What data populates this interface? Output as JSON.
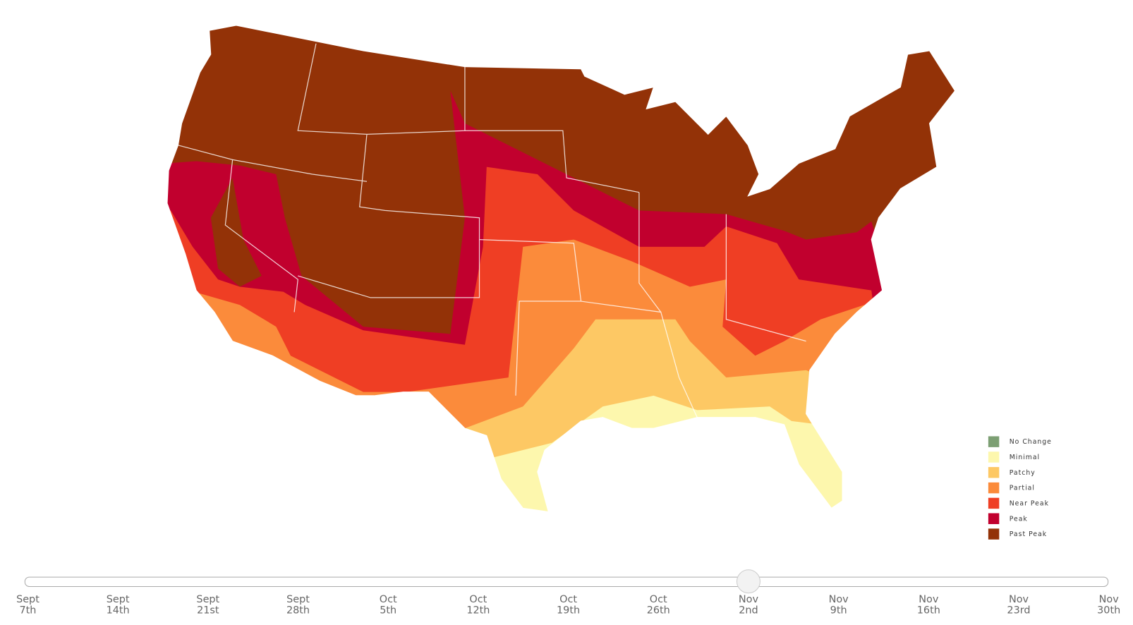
{
  "legend": {
    "items": [
      {
        "label": "No Change",
        "color": "#7c9f73"
      },
      {
        "label": "Minimal",
        "color": "#fdf7ad"
      },
      {
        "label": "Patchy",
        "color": "#fdc864"
      },
      {
        "label": "Partial",
        "color": "#fb8b3b"
      },
      {
        "label": "Near Peak",
        "color": "#ef3e24"
      },
      {
        "label": "Peak",
        "color": "#c1002e"
      },
      {
        "label": "Past Peak",
        "color": "#933207"
      }
    ]
  },
  "slider": {
    "selected": 8,
    "labels": [
      {
        "month": "Sept",
        "day": "7th"
      },
      {
        "month": "Sept",
        "day": "14th"
      },
      {
        "month": "Sept",
        "day": "21st"
      },
      {
        "month": "Sept",
        "day": "28th"
      },
      {
        "month": "Oct",
        "day": "5th"
      },
      {
        "month": "Oct",
        "day": "12th"
      },
      {
        "month": "Oct",
        "day": "19th"
      },
      {
        "month": "Oct",
        "day": "26th"
      },
      {
        "month": "Nov",
        "day": "2nd"
      },
      {
        "month": "Nov",
        "day": "9th"
      },
      {
        "month": "Nov",
        "day": "16th"
      },
      {
        "month": "Nov",
        "day": "23rd"
      },
      {
        "month": "Nov",
        "day": "30th"
      }
    ]
  }
}
